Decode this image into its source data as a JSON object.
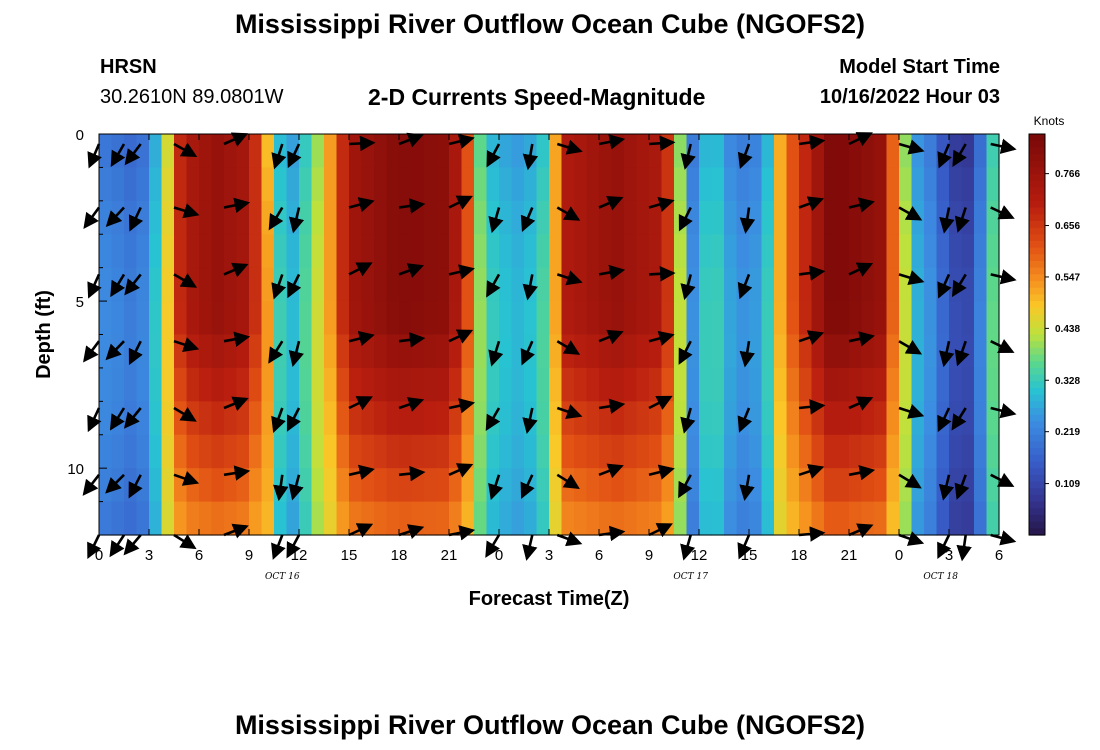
{
  "header": {
    "title": "Mississippi River Outflow Ocean Cube (NGOFS2)",
    "station_code": "HRSN",
    "station_coords": "30.2610N  89.0801W",
    "subtitle": "2-D Currents Speed-Magnitude",
    "model_start_label": "Model Start Time",
    "model_start_value": "10/16/2022 Hour 03"
  },
  "footer": {
    "title": "Mississippi River Outflow Ocean Cube (NGOFS2)"
  },
  "chart_data": {
    "type": "heatmap",
    "title": "2-D Currents Speed-Magnitude",
    "xlabel": "Forecast Time(Z)",
    "ylabel": "Depth (ft)",
    "x_tick_labels": [
      "0",
      "3",
      "6",
      "9",
      "12",
      "15",
      "18",
      "21",
      "0",
      "3",
      "6",
      "9",
      "12",
      "15",
      "18",
      "21",
      "0",
      "3",
      "6"
    ],
    "x_range_hours": [
      0,
      54
    ],
    "y_ticks": [
      0,
      5,
      10
    ],
    "y_range_ft": [
      0,
      12
    ],
    "day_labels": [
      {
        "text": "OCT 16",
        "hour": 11
      },
      {
        "text": "OCT 17",
        "hour": 35.5
      },
      {
        "text": "OCT 18",
        "hour": 50.5
      }
    ],
    "colorbar": {
      "label": "Knots",
      "ticks": [
        "0.766",
        "0.656",
        "0.547",
        "0.438",
        "0.328",
        "0.219",
        "0.109"
      ],
      "tick_values": [
        0.766,
        0.656,
        0.547,
        0.438,
        0.328,
        0.219,
        0.109
      ],
      "range": [
        0.0,
        0.85
      ]
    },
    "speed_profile_by_hour": [
      [
        0,
        0.2
      ],
      [
        1,
        0.19
      ],
      [
        2,
        0.17
      ],
      [
        3,
        0.2
      ],
      [
        4,
        0.4
      ],
      [
        5,
        0.72
      ],
      [
        7,
        0.78
      ],
      [
        9,
        0.74
      ],
      [
        10,
        0.55
      ],
      [
        10.5,
        0.32
      ],
      [
        11.5,
        0.25
      ],
      [
        12,
        0.28
      ],
      [
        13,
        0.38
      ],
      [
        14,
        0.55
      ],
      [
        15,
        0.75
      ],
      [
        18,
        0.82
      ],
      [
        21,
        0.8
      ],
      [
        22.5,
        0.55
      ],
      [
        23,
        0.3
      ],
      [
        25,
        0.25
      ],
      [
        26.5,
        0.28
      ],
      [
        27,
        0.4
      ],
      [
        28,
        0.72
      ],
      [
        31,
        0.78
      ],
      [
        34,
        0.72
      ],
      [
        34.5,
        0.48
      ],
      [
        35,
        0.36
      ],
      [
        35.5,
        0.18
      ],
      [
        36,
        0.28
      ],
      [
        37,
        0.3
      ],
      [
        38,
        0.22
      ],
      [
        39,
        0.2
      ],
      [
        40,
        0.25
      ],
      [
        41,
        0.55
      ],
      [
        44,
        0.84
      ],
      [
        47,
        0.78
      ],
      [
        48,
        0.48
      ],
      [
        49,
        0.25
      ],
      [
        50,
        0.2
      ],
      [
        51,
        0.1
      ],
      [
        52,
        0.06
      ],
      [
        53,
        0.2
      ],
      [
        53.5,
        0.32
      ],
      [
        54,
        0.36
      ]
    ],
    "arrow_hours": [
      0,
      1.5,
      2.5,
      4.5,
      7.5,
      11,
      12,
      15,
      18,
      21,
      24,
      26,
      27.5,
      30,
      33,
      35.5,
      39,
      42,
      45,
      48,
      51,
      52,
      53.5
    ],
    "arrow_depths_ft": [
      0.3,
      2.2,
      4.2,
      6.2,
      8.2,
      10.2,
      12
    ]
  }
}
